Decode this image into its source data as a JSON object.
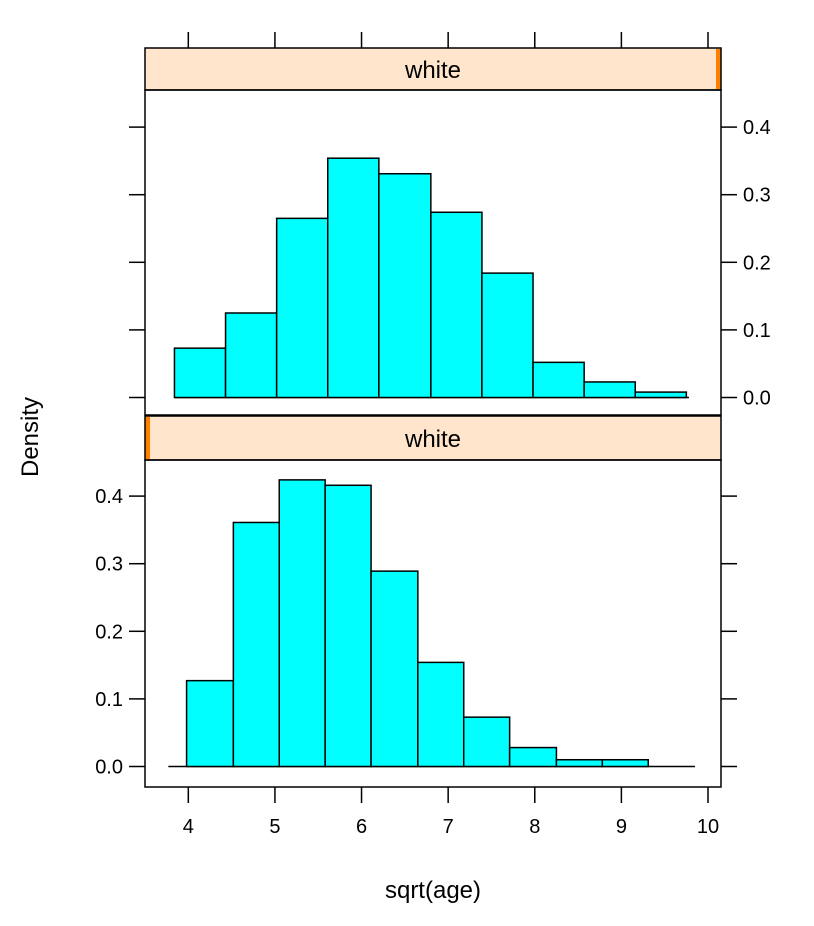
{
  "chart_data": {
    "type": "bar",
    "chart_kind": "histogram (lattice trellis, 2 panels)",
    "xlabel": "sqrt(age)",
    "ylabel": "Density",
    "xlim": [
      3.5,
      10.15
    ],
    "ylim": [
      -0.045,
      0.46
    ],
    "x_ticks": [
      4,
      5,
      6,
      7,
      8,
      9,
      10
    ],
    "y_ticks": [
      0.0,
      0.1,
      0.2,
      0.3,
      0.4
    ],
    "y_tick_labels": [
      "0.0",
      "0.1",
      "0.2",
      "0.3",
      "0.4"
    ],
    "grid": false,
    "legend": "none",
    "colors": {
      "bar_fill": "#00FFFF",
      "strip_fill": "#FFE5CC",
      "strip_level_marker": "#FF7F00",
      "outline": "#000000"
    },
    "panels": [
      {
        "position": "top",
        "strip_label": "white",
        "strip_level_fraction": 1.0,
        "y_axis_side": "right",
        "range": [
          3.84,
          9.78
        ],
        "bins": [
          {
            "x0": 3.84,
            "x1": 4.43,
            "density": 0.073
          },
          {
            "x0": 4.43,
            "x1": 5.02,
            "density": 0.125
          },
          {
            "x0": 5.02,
            "x1": 5.61,
            "density": 0.265
          },
          {
            "x0": 5.61,
            "x1": 6.2,
            "density": 0.354
          },
          {
            "x0": 6.2,
            "x1": 6.8,
            "density": 0.331
          },
          {
            "x0": 6.8,
            "x1": 7.39,
            "density": 0.274
          },
          {
            "x0": 7.39,
            "x1": 7.98,
            "density": 0.184
          },
          {
            "x0": 7.98,
            "x1": 8.57,
            "density": 0.052
          },
          {
            "x0": 8.57,
            "x1": 9.16,
            "density": 0.023
          },
          {
            "x0": 9.16,
            "x1": 9.75,
            "density": 0.008
          }
        ]
      },
      {
        "position": "bottom",
        "strip_label": "white",
        "strip_level_fraction": 0.0,
        "y_axis_side": "left",
        "range": [
          3.77,
          9.85
        ],
        "bins": [
          {
            "x0": 3.98,
            "x1": 4.52,
            "density": 0.127
          },
          {
            "x0": 4.52,
            "x1": 5.05,
            "density": 0.361
          },
          {
            "x0": 5.05,
            "x1": 5.58,
            "density": 0.424
          },
          {
            "x0": 5.58,
            "x1": 6.11,
            "density": 0.416
          },
          {
            "x0": 6.11,
            "x1": 6.65,
            "density": 0.289
          },
          {
            "x0": 6.65,
            "x1": 7.18,
            "density": 0.154
          },
          {
            "x0": 7.18,
            "x1": 7.71,
            "density": 0.073
          },
          {
            "x0": 7.71,
            "x1": 8.25,
            "density": 0.028
          },
          {
            "x0": 8.25,
            "x1": 8.78,
            "density": 0.01
          },
          {
            "x0": 8.78,
            "x1": 9.31,
            "density": 0.01
          }
        ]
      }
    ]
  }
}
